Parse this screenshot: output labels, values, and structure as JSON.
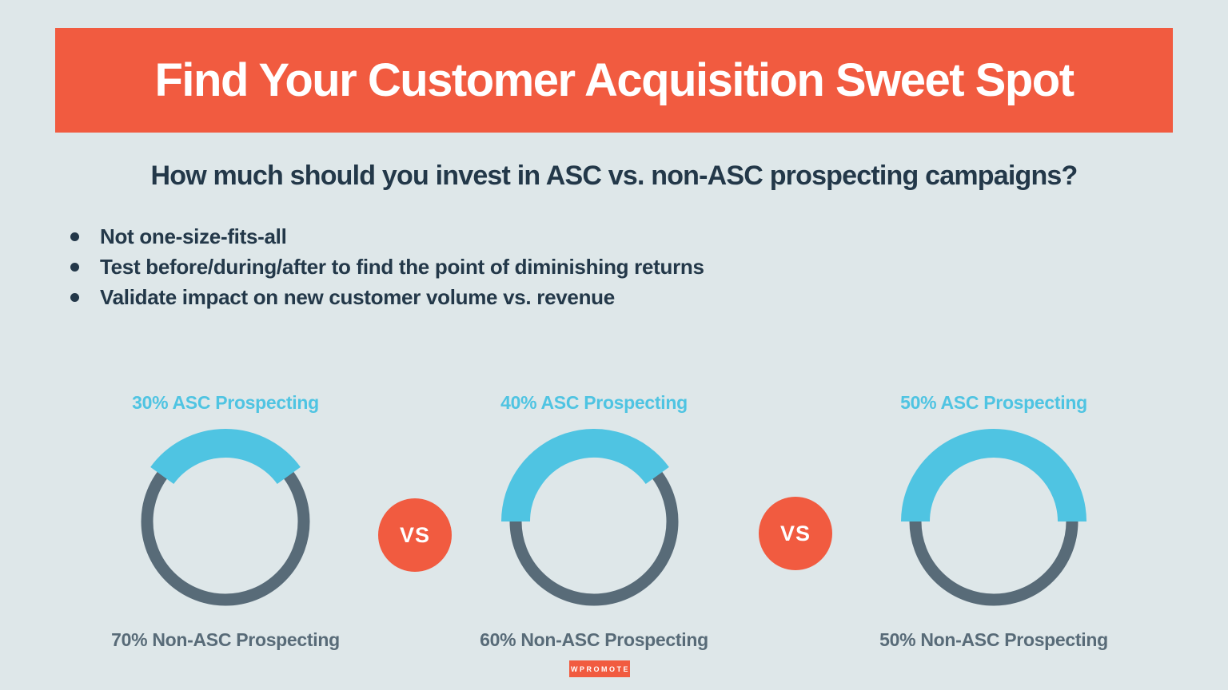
{
  "header": {
    "title": "Find Your Customer Acquisition Sweet Spot",
    "subtitle": "How much should you invest in ASC vs. non-ASC prospecting campaigns?"
  },
  "bullets": [
    "Not one-size-fits-all",
    "Test before/during/after to find the point of diminishing returns",
    "Validate impact on new customer volume vs. revenue"
  ],
  "footer": {
    "logo_text": "WPROMOTE"
  },
  "colors": {
    "background": "#dee7e9",
    "accent_red": "#f15b40",
    "accent_blue": "#4fc4e2",
    "slate_gray": "#586b78",
    "dark_navy": "#233849",
    "white": "#ffffff"
  },
  "chart_data": {
    "type": "donut-comparison",
    "separator_label": "VS",
    "legend_position": "none",
    "donuts": [
      {
        "asc_pct": 30,
        "non_asc_pct": 70,
        "asc_label": "30% ASC Prospecting",
        "non_asc_label": "70% Non-ASC Prospecting",
        "arc_start_deg": -54,
        "arc_end_deg": 54
      },
      {
        "asc_pct": 40,
        "non_asc_pct": 60,
        "asc_label": "40% ASC Prospecting",
        "non_asc_label": "60% Non-ASC Prospecting",
        "arc_start_deg": -90,
        "arc_end_deg": 54
      },
      {
        "asc_pct": 50,
        "non_asc_pct": 50,
        "asc_label": "50% ASC Prospecting",
        "non_asc_label": "50% Non-ASC Prospecting",
        "arc_start_deg": -90,
        "arc_end_deg": 90
      }
    ]
  }
}
